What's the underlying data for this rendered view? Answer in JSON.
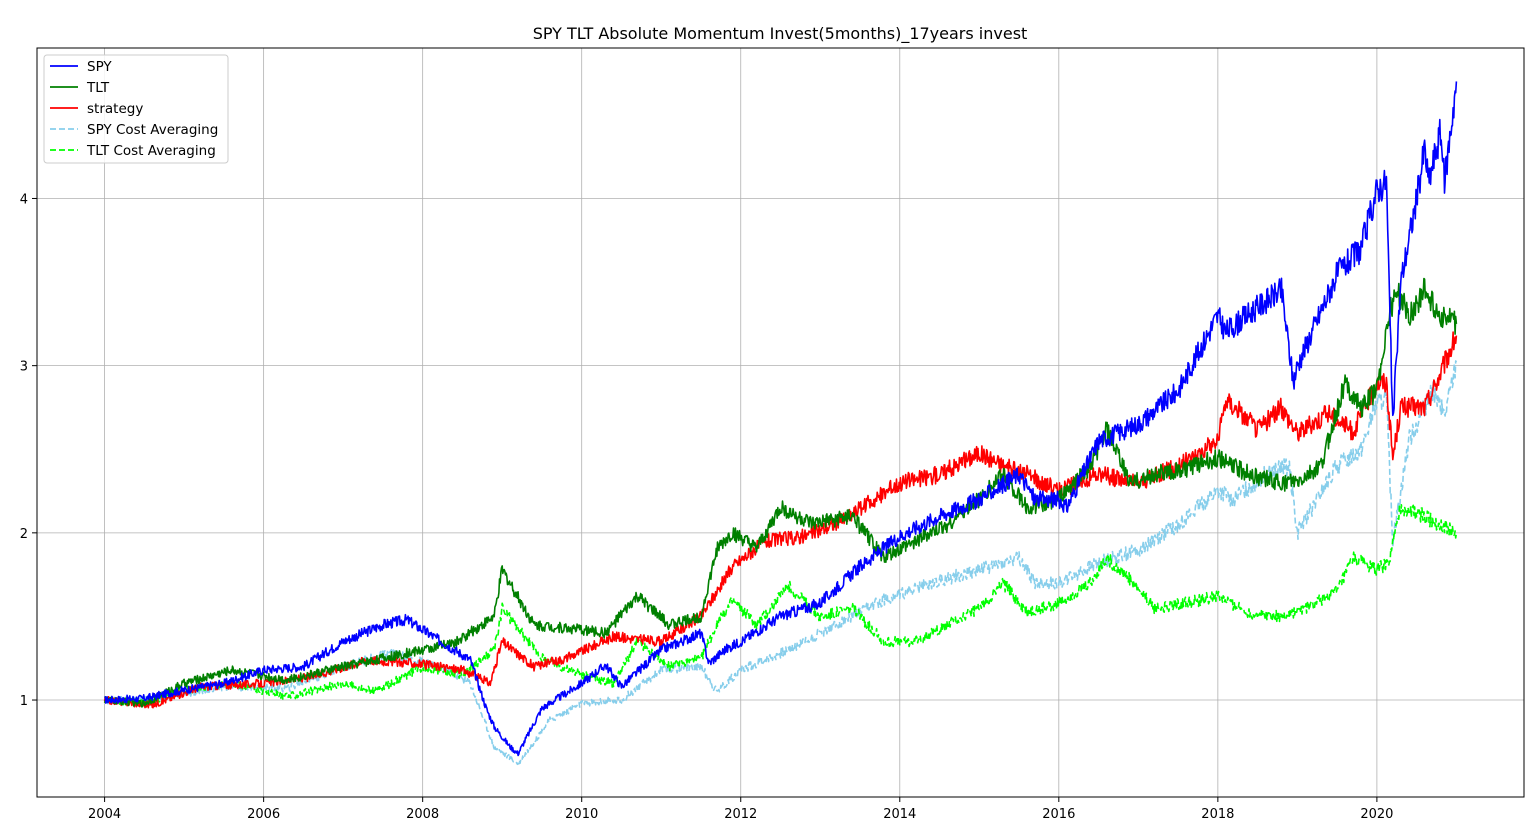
{
  "chart_data": {
    "type": "line",
    "title": "SPY TLT Absolute Momentum Invest(5months)_17years invest",
    "xlabel": "",
    "ylabel": "",
    "xlim": [
      2003.15,
      2021.85
    ],
    "ylim": [
      0.42,
      4.9
    ],
    "x_ticks": [
      2004,
      2006,
      2008,
      2010,
      2012,
      2014,
      2016,
      2018,
      2020
    ],
    "x_tick_labels": [
      "2004",
      "2006",
      "2008",
      "2010",
      "2012",
      "2014",
      "2016",
      "2018",
      "2020"
    ],
    "y_ticks": [
      1,
      2,
      3,
      4
    ],
    "y_tick_labels": [
      "1",
      "2",
      "3",
      "4"
    ],
    "grid": true,
    "legend_position": "upper-left",
    "series": [
      {
        "name": "SPY",
        "color": "#0000ff",
        "dash": "solid",
        "x": [
          2004.0,
          2004.5,
          2005.0,
          2005.5,
          2006.0,
          2006.5,
          2007.0,
          2007.5,
          2007.8,
          2008.2,
          2008.6,
          2008.8,
          2008.9,
          2009.1,
          2009.2,
          2009.5,
          2010.0,
          2010.3,
          2010.5,
          2011.0,
          2011.5,
          2011.6,
          2011.8,
          2012.0,
          2012.5,
          2013.0,
          2013.5,
          2014.0,
          2014.5,
          2015.0,
          2015.5,
          2015.7,
          2016.0,
          2016.1,
          2016.5,
          2017.0,
          2017.5,
          2018.0,
          2018.1,
          2018.5,
          2018.8,
          2018.95,
          2019.0,
          2019.5,
          2019.8,
          2020.0,
          2020.12,
          2020.2,
          2020.3,
          2020.5,
          2020.6,
          2020.65,
          2020.8,
          2020.85,
          2021.0
        ],
        "values": [
          1.0,
          1.01,
          1.06,
          1.1,
          1.18,
          1.2,
          1.35,
          1.45,
          1.48,
          1.36,
          1.24,
          0.95,
          0.84,
          0.72,
          0.68,
          0.95,
          1.1,
          1.21,
          1.08,
          1.3,
          1.4,
          1.22,
          1.3,
          1.35,
          1.5,
          1.58,
          1.8,
          1.98,
          2.1,
          2.2,
          2.35,
          2.2,
          2.2,
          2.15,
          2.55,
          2.65,
          2.85,
          3.3,
          3.2,
          3.35,
          3.45,
          2.9,
          3.0,
          3.55,
          3.7,
          4.05,
          4.1,
          2.65,
          3.5,
          4.0,
          4.3,
          4.1,
          4.4,
          4.1,
          4.7
        ]
      },
      {
        "name": "TLT",
        "color": "#008000",
        "dash": "solid",
        "x": [
          2004.0,
          2004.5,
          2005.0,
          2005.6,
          2006.3,
          2007.0,
          2007.5,
          2008.0,
          2008.4,
          2008.9,
          2009.0,
          2009.4,
          2010.0,
          2010.3,
          2010.7,
          2011.1,
          2011.5,
          2011.7,
          2011.9,
          2012.2,
          2012.5,
          2012.9,
          2013.4,
          2013.8,
          2014.2,
          2014.6,
          2015.0,
          2015.3,
          2015.6,
          2016.0,
          2016.4,
          2016.6,
          2016.9,
          2017.2,
          2017.6,
          2018.0,
          2018.4,
          2018.8,
          2019.0,
          2019.3,
          2019.6,
          2019.8,
          2020.0,
          2020.15,
          2020.25,
          2020.4,
          2020.6,
          2020.8,
          2021.0
        ],
        "values": [
          1.0,
          0.98,
          1.1,
          1.18,
          1.12,
          1.2,
          1.25,
          1.3,
          1.34,
          1.5,
          1.78,
          1.45,
          1.42,
          1.4,
          1.62,
          1.45,
          1.5,
          1.9,
          2.0,
          1.9,
          2.15,
          2.05,
          2.1,
          1.85,
          1.95,
          2.05,
          2.2,
          2.35,
          2.15,
          2.2,
          2.4,
          2.62,
          2.3,
          2.35,
          2.38,
          2.45,
          2.35,
          2.3,
          2.3,
          2.4,
          2.9,
          2.75,
          2.85,
          3.3,
          3.45,
          3.3,
          3.45,
          3.3,
          3.25
        ]
      },
      {
        "name": "strategy",
        "color": "#ff0000",
        "dash": "solid",
        "x": [
          2004.0,
          2004.6,
          2005.2,
          2006.0,
          2006.6,
          2007.3,
          2007.9,
          2008.5,
          2008.85,
          2009.0,
          2009.4,
          2009.8,
          2010.4,
          2011.0,
          2011.5,
          2011.7,
          2011.9,
          2012.3,
          2012.8,
          2013.3,
          2014.0,
          2014.5,
          2015.0,
          2015.4,
          2015.6,
          2016.0,
          2016.5,
          2017.0,
          2017.5,
          2018.0,
          2018.1,
          2018.5,
          2018.8,
          2019.0,
          2019.4,
          2019.7,
          2020.0,
          2020.12,
          2020.2,
          2020.3,
          2020.6,
          2020.8,
          2021.0
        ],
        "values": [
          1.0,
          0.97,
          1.08,
          1.1,
          1.14,
          1.24,
          1.22,
          1.18,
          1.1,
          1.35,
          1.2,
          1.25,
          1.38,
          1.35,
          1.5,
          1.65,
          1.8,
          1.95,
          1.98,
          2.08,
          2.3,
          2.35,
          2.48,
          2.38,
          2.35,
          2.25,
          2.35,
          2.3,
          2.4,
          2.55,
          2.8,
          2.62,
          2.75,
          2.6,
          2.72,
          2.6,
          2.9,
          2.9,
          2.45,
          2.75,
          2.75,
          2.95,
          3.18
        ]
      },
      {
        "name": "SPY Cost Averaging",
        "color": "#87ceeb",
        "dash": "dashed",
        "x": [
          2004.0,
          2004.5,
          2005.0,
          2005.6,
          2006.3,
          2007.0,
          2007.6,
          2008.2,
          2008.6,
          2008.9,
          2009.2,
          2009.6,
          2010.0,
          2010.5,
          2011.0,
          2011.5,
          2011.7,
          2012.0,
          2012.6,
          2013.2,
          2013.8,
          2014.4,
          2015.0,
          2015.5,
          2015.7,
          2016.0,
          2016.5,
          2017.0,
          2017.5,
          2018.0,
          2018.2,
          2018.6,
          2018.9,
          2019.0,
          2019.5,
          2019.8,
          2020.0,
          2020.12,
          2020.2,
          2020.4,
          2020.7,
          2020.85,
          2021.0
        ],
        "values": [
          1.0,
          1.0,
          1.04,
          1.08,
          1.07,
          1.2,
          1.28,
          1.2,
          1.1,
          0.72,
          0.62,
          0.88,
          0.98,
          1.0,
          1.18,
          1.2,
          1.05,
          1.18,
          1.3,
          1.45,
          1.6,
          1.7,
          1.78,
          1.85,
          1.7,
          1.7,
          1.82,
          1.9,
          2.05,
          2.25,
          2.2,
          2.35,
          2.4,
          2.0,
          2.4,
          2.5,
          2.78,
          2.8,
          1.95,
          2.55,
          2.85,
          2.7,
          3.02
        ]
      },
      {
        "name": "TLT Cost Averaging",
        "color": "#00ff00",
        "dash": "dashed",
        "x": [
          2004.0,
          2004.5,
          2005.0,
          2005.6,
          2006.3,
          2007.0,
          2007.4,
          2008.0,
          2008.5,
          2008.9,
          2009.0,
          2009.5,
          2010.0,
          2010.4,
          2010.7,
          2011.1,
          2011.5,
          2011.7,
          2011.9,
          2012.2,
          2012.6,
          2013.0,
          2013.4,
          2013.8,
          2014.2,
          2014.6,
          2015.0,
          2015.3,
          2015.6,
          2016.0,
          2016.4,
          2016.6,
          2016.9,
          2017.2,
          2017.6,
          2018.0,
          2018.4,
          2018.8,
          2019.1,
          2019.5,
          2019.7,
          2020.0,
          2020.15,
          2020.3,
          2020.6,
          2020.8,
          2021.0
        ],
        "values": [
          1.0,
          0.98,
          1.06,
          1.1,
          1.02,
          1.1,
          1.05,
          1.2,
          1.15,
          1.3,
          1.55,
          1.25,
          1.15,
          1.1,
          1.35,
          1.2,
          1.25,
          1.45,
          1.6,
          1.45,
          1.68,
          1.5,
          1.55,
          1.35,
          1.35,
          1.45,
          1.55,
          1.7,
          1.52,
          1.58,
          1.7,
          1.85,
          1.72,
          1.55,
          1.58,
          1.62,
          1.52,
          1.5,
          1.55,
          1.65,
          1.85,
          1.78,
          1.82,
          2.15,
          2.1,
          2.05,
          2.0
        ]
      }
    ]
  }
}
